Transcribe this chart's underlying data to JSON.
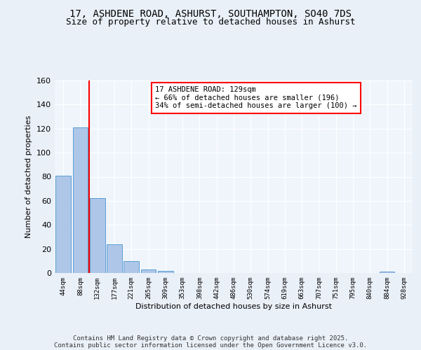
{
  "title_line1": "17, ASHDENE ROAD, ASHURST, SOUTHAMPTON, SO40 7DS",
  "title_line2": "Size of property relative to detached houses in Ashurst",
  "xlabel": "Distribution of detached houses by size in Ashurst",
  "ylabel": "Number of detached properties",
  "bar_labels": [
    "44sqm",
    "88sqm",
    "132sqm",
    "177sqm",
    "221sqm",
    "265sqm",
    "309sqm",
    "353sqm",
    "398sqm",
    "442sqm",
    "486sqm",
    "530sqm",
    "574sqm",
    "619sqm",
    "663sqm",
    "707sqm",
    "751sqm",
    "795sqm",
    "840sqm",
    "884sqm",
    "928sqm"
  ],
  "bar_values": [
    81,
    121,
    62,
    24,
    10,
    3,
    2,
    0,
    0,
    0,
    0,
    0,
    0,
    0,
    0,
    0,
    0,
    0,
    0,
    1,
    0
  ],
  "bar_color": "#aec6e8",
  "bar_edgecolor": "#5a9fd4",
  "vline_x": 1.5,
  "vline_color": "red",
  "annotation_box_text": "17 ASHDENE ROAD: 129sqm\n← 66% of detached houses are smaller (196)\n34% of semi-detached houses are larger (100) →",
  "annotation_box_facecolor": "white",
  "annotation_box_edgecolor": "red",
  "ylim": [
    0,
    160
  ],
  "yticks": [
    0,
    20,
    40,
    60,
    80,
    100,
    120,
    140,
    160
  ],
  "footer_line1": "Contains HM Land Registry data © Crown copyright and database right 2025.",
  "footer_line2": "Contains public sector information licensed under the Open Government Licence v3.0.",
  "bg_color": "#eaf0f8",
  "plot_bg_color": "#f0f5fc",
  "title_fontsize": 10,
  "subtitle_fontsize": 9,
  "annotation_fontsize": 7.5,
  "footer_fontsize": 6.5,
  "ylabel_fontsize": 8,
  "xlabel_fontsize": 8
}
